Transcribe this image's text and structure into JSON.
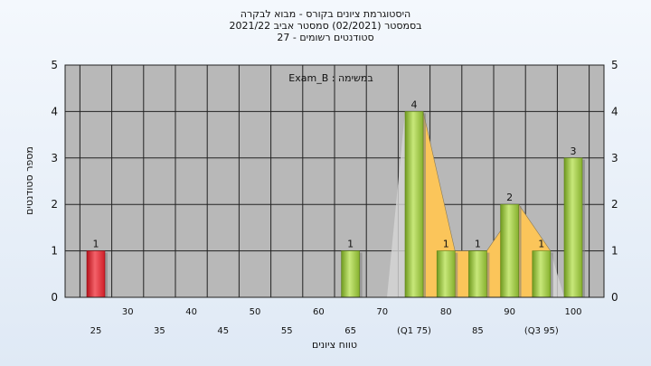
{
  "header": {
    "line1": "היסטוגרמת ציונים בקורס - מבוא לבקרה",
    "line2": "בסמסטר  (02/2021)  סמסטר אביב 2021/22",
    "line3": "סטודנטים רשומים - 27"
  },
  "chart_data": {
    "type": "bar",
    "annotation": "במשימה : Exam_B",
    "xlabel": "טווח ציונים",
    "ylabel": "מספר סטודנטים",
    "ylim": [
      0,
      5
    ],
    "y_ticks": [
      0,
      1,
      2,
      3,
      4,
      5
    ],
    "grid": true,
    "categories": [
      "25",
      "30",
      "35",
      "40",
      "45",
      "50",
      "55",
      "60",
      "65",
      "70",
      "(Q1 75)",
      "80",
      "85",
      "90",
      "(Q3 95)",
      "100"
    ],
    "values": [
      1,
      0,
      0,
      0,
      0,
      0,
      0,
      0,
      1,
      0,
      4,
      1,
      1,
      2,
      1,
      3
    ],
    "data_labels": [
      "1",
      "",
      "",
      "",
      "",
      "",
      "",
      "",
      "1",
      "",
      "4",
      "1",
      "1",
      "2",
      "1",
      "3"
    ],
    "bar_colors": [
      "#e2262f",
      "",
      "",
      "",
      "",
      "",
      "",
      "",
      "#9bc640",
      "",
      "#9bc640",
      "#9bc640",
      "#9bc640",
      "#9bc640",
      "#9bc640",
      "#9bc640"
    ],
    "quartile_band": {
      "from": "(Q1 75)",
      "to": "(Q3 95)",
      "color": "#fbc55a"
    },
    "plot_background": "#b8b8b8"
  }
}
